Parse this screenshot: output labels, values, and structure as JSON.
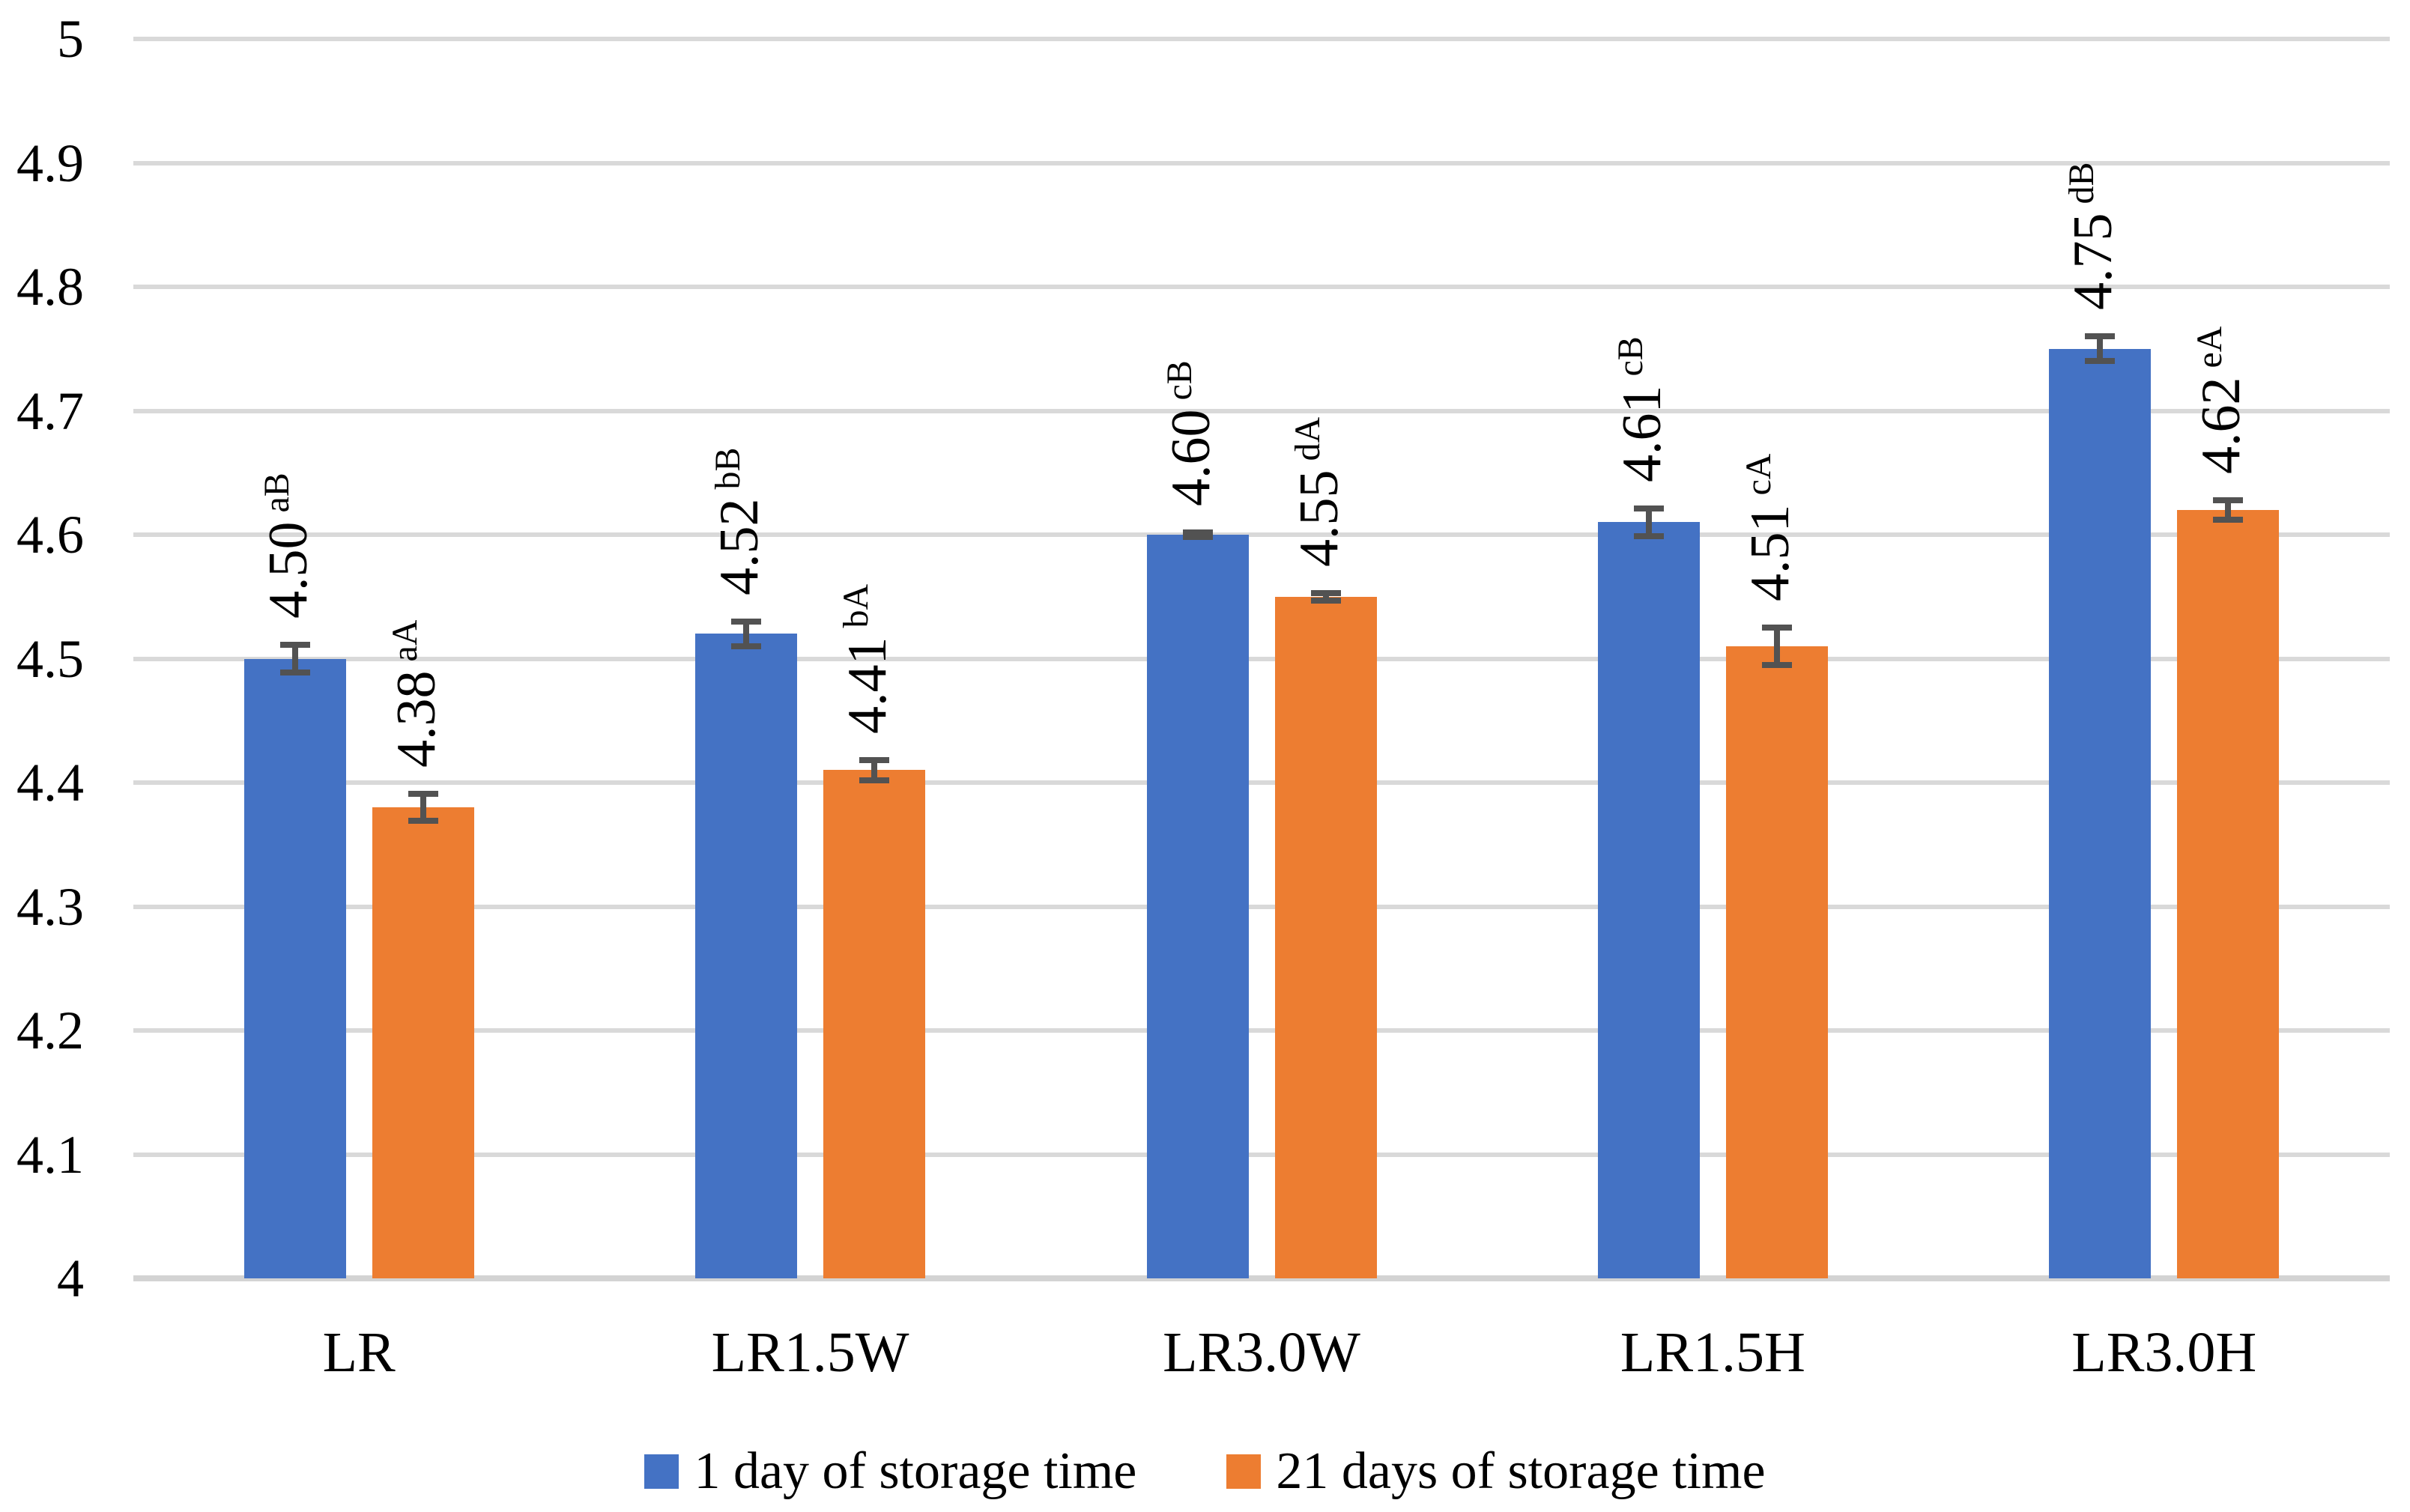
{
  "chart_data": {
    "type": "bar",
    "categories": [
      "LR",
      "LR1.5W",
      "LR3.0W",
      "LR1.5H",
      "LR3.0H"
    ],
    "series": [
      {
        "name": "1 day of storage time",
        "color": "#4472C4",
        "values": [
          4.5,
          4.52,
          4.6,
          4.61,
          4.75
        ],
        "errors": [
          0.011,
          0.01,
          0.002,
          0.011,
          0.01
        ],
        "labels": [
          "4.50",
          "4.52",
          "4.60",
          "4.61",
          "4.75"
        ],
        "label_superscripts": [
          "aB",
          "bB",
          "cB",
          "cB",
          "dB"
        ]
      },
      {
        "name": "21 days of storage time",
        "color": "#ED7D31",
        "values": [
          4.38,
          4.41,
          4.55,
          4.51,
          4.62
        ],
        "errors": [
          0.011,
          0.008,
          0.003,
          0.015,
          0.008
        ],
        "labels": [
          "4.38",
          "4.41",
          "4.55",
          "4.51",
          "4.62"
        ],
        "label_superscripts": [
          "aA",
          "bA",
          "dA",
          "cA",
          "eA"
        ]
      }
    ],
    "ylim": [
      4,
      5
    ],
    "ytick_step": 0.1,
    "ytick_labels": [
      "5",
      "4.9",
      "4.8",
      "4.7",
      "4.6",
      "4.5",
      "4.4",
      "4.3",
      "4.2",
      "4.1",
      "4"
    ],
    "grid": true,
    "gridline_color": "#D9D9D9",
    "axis_line_color": "#D3D3D3",
    "error_bar_color": "#525252",
    "text_color": "#000000",
    "legend_position": "bottom",
    "title": "",
    "xlabel": "",
    "ylabel": ""
  }
}
